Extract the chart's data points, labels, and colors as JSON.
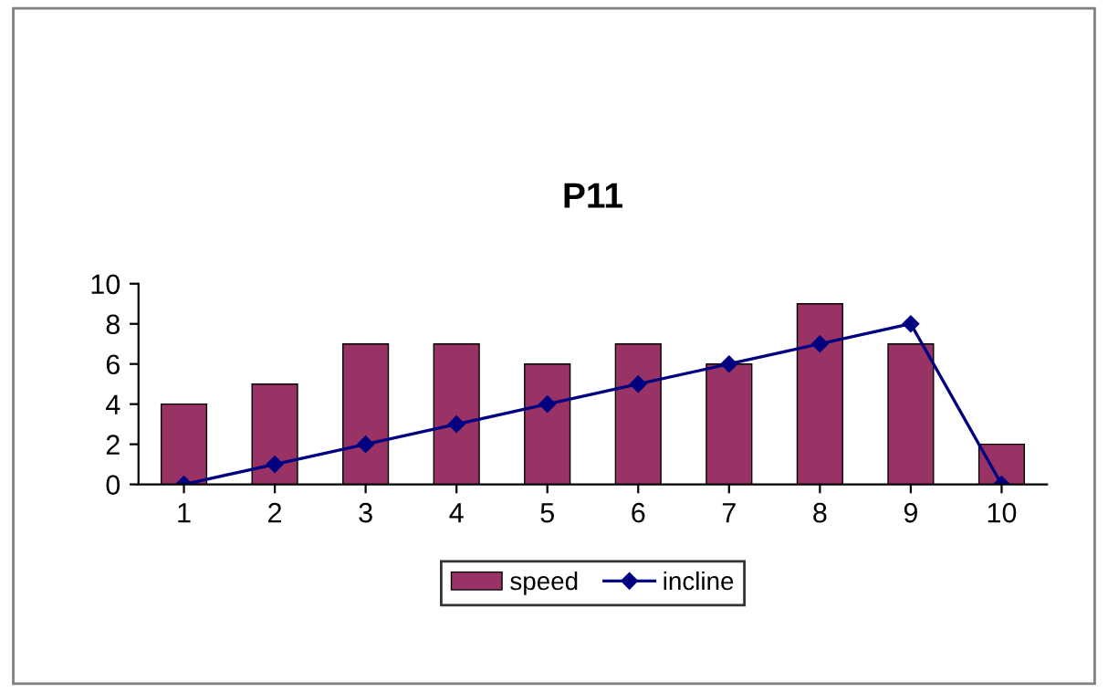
{
  "chart_data": {
    "type": "bar",
    "title": "P11",
    "categories": [
      "1",
      "2",
      "3",
      "4",
      "5",
      "6",
      "7",
      "8",
      "9",
      "10"
    ],
    "series": [
      {
        "name": "speed",
        "color": "#993366",
        "values": [
          4,
          5,
          7,
          7,
          6,
          7,
          6,
          9,
          7,
          2
        ]
      },
      {
        "name": "incline",
        "type": "line",
        "color": "#000080",
        "marker": "diamond",
        "values": [
          0,
          1,
          2,
          3,
          4,
          5,
          6,
          7,
          8,
          0
        ]
      }
    ],
    "ylim": [
      0,
      10
    ],
    "yticks": [
      0,
      2,
      4,
      6,
      8,
      10
    ],
    "grid": false,
    "legend": "bottom"
  }
}
